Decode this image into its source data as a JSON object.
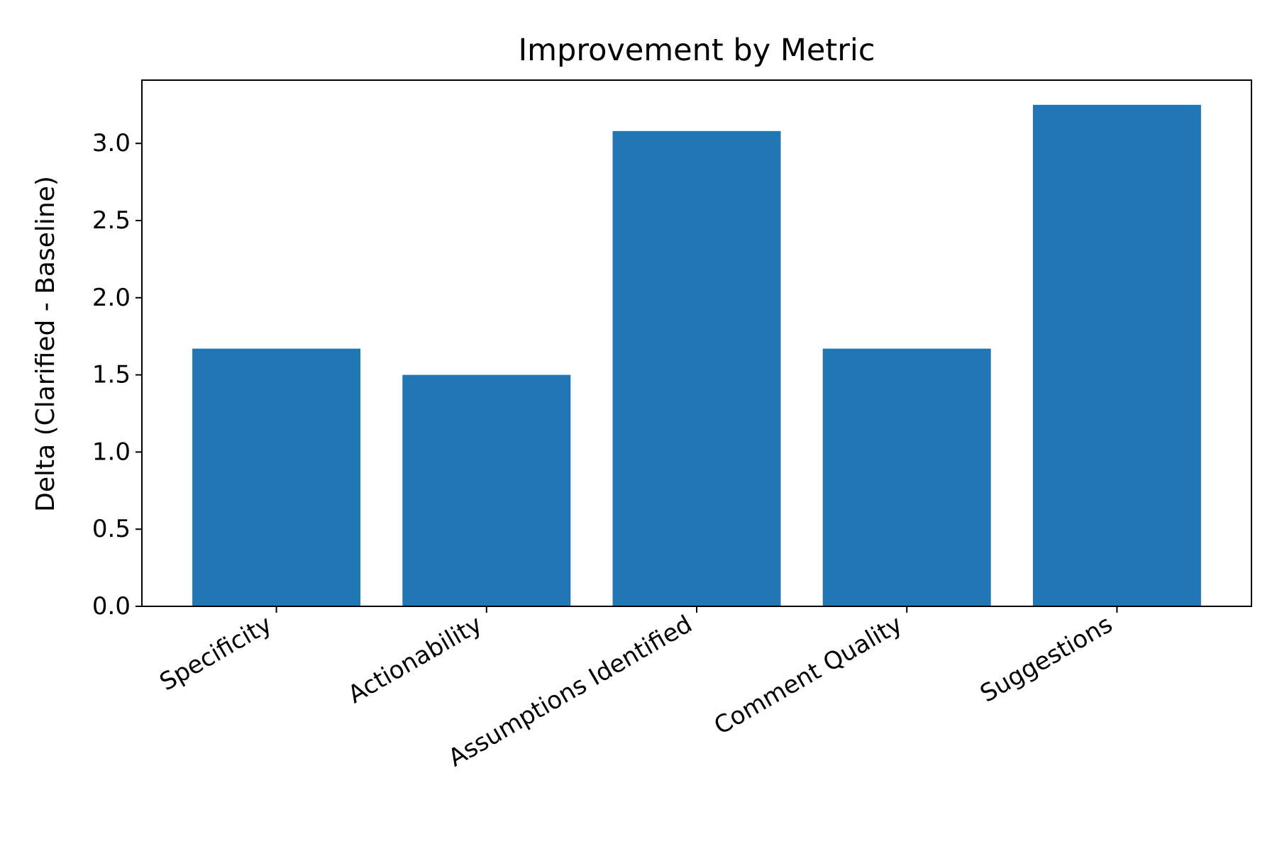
{
  "chart_data": {
    "type": "bar",
    "title": "Improvement by Metric",
    "xlabel": "",
    "ylabel": "Delta (Clarified - Baseline)",
    "categories": [
      "Specificity",
      "Actionability",
      "Assumptions Identified",
      "Comment Quality",
      "Suggestions"
    ],
    "values": [
      1.67,
      1.5,
      3.08,
      1.67,
      3.25
    ],
    "ylim": [
      0,
      3.41
    ],
    "yticks": [
      "0.0",
      "0.5",
      "1.0",
      "1.5",
      "2.0",
      "2.5",
      "3.0"
    ],
    "grid": false,
    "colors": {
      "bar": "#2077b4",
      "axis": "#000000"
    }
  }
}
